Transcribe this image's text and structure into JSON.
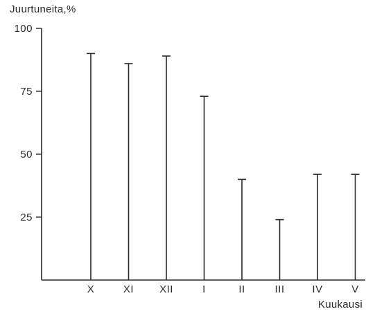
{
  "chart_data": {
    "type": "bar",
    "style": "line-bars",
    "ylabel": "Juurtuneita,%",
    "xlabel": "Kuukausi",
    "categories": [
      "X",
      "XI",
      "XII",
      "I",
      "II",
      "III",
      "IV",
      "V"
    ],
    "values": [
      90,
      86,
      89,
      73,
      40,
      24,
      42,
      42
    ],
    "ylim": [
      0,
      100
    ],
    "yticks": [
      {
        "value": 25,
        "label": "25"
      },
      {
        "value": 50,
        "label": "50"
      },
      {
        "value": 75,
        "label": "75"
      },
      {
        "value": 100,
        "label": "100"
      }
    ],
    "grid": false,
    "legend": false,
    "colors": {
      "ink": "#2a2a2a",
      "background": "#ffffff"
    }
  }
}
